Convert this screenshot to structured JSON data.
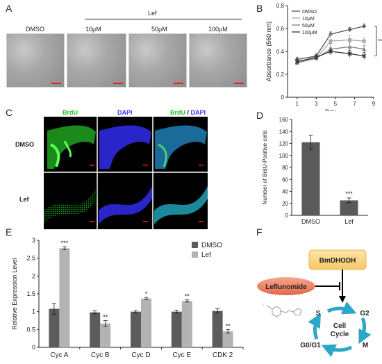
{
  "panel_labels": {
    "a": "A",
    "b": "B",
    "c": "C",
    "d": "D",
    "e": "E",
    "f": "F"
  },
  "panelA": {
    "treatment_label": "Lef",
    "conditions": [
      "DMSO",
      "10μM",
      "50μM",
      "100μM"
    ],
    "scalebar_color": "#e02020"
  },
  "panelC": {
    "columns": [
      "BrdU",
      "DAPI"
    ],
    "merge_label": {
      "brdu": "BrdU",
      "slash": " / ",
      "dapi": "DAPI"
    },
    "rows": [
      "DMSO",
      "Lef"
    ],
    "colors": {
      "brdu": "#22c022",
      "dapi": "#3a35ff"
    }
  },
  "chart_data": [
    {
      "id": "B",
      "type": "line",
      "xlabel": "Day",
      "ylabel": "Absorbance (560 nm)",
      "x": [
        1,
        3,
        5,
        7,
        9
      ],
      "xticks": [
        "1",
        "3",
        "5",
        "7",
        "9"
      ],
      "ylim": [
        0,
        0.8
      ],
      "yticks": [
        "0",
        "0.2",
        "0.4",
        "0.6",
        "0.8"
      ],
      "legend_position": "top-left",
      "significance": "**",
      "series": [
        {
          "name": "DMSO",
          "color": "#555555",
          "marker": "diamond",
          "x": [
            1,
            3,
            4.5,
            6.5,
            8
          ],
          "y": [
            0.33,
            0.36,
            0.55,
            0.59,
            0.62
          ],
          "err": [
            0.02,
            0.02,
            0.02,
            0.02,
            0.02
          ]
        },
        {
          "name": "10μM",
          "color": "#aaaaaa",
          "marker": "square",
          "x": [
            1,
            3,
            4.5,
            6.5,
            8
          ],
          "y": [
            0.31,
            0.34,
            0.49,
            0.5,
            0.49
          ],
          "err": [
            0.02,
            0.02,
            0.06,
            0.04,
            0.03
          ]
        },
        {
          "name": "50μM",
          "color": "#808080",
          "marker": "triangle",
          "x": [
            1,
            3,
            4.5,
            6.5,
            8
          ],
          "y": [
            0.3,
            0.34,
            0.42,
            0.44,
            0.42
          ],
          "err": [
            0.02,
            0.02,
            0.05,
            0.04,
            0.03
          ]
        },
        {
          "name": "100μM",
          "color": "#333333",
          "marker": "x",
          "x": [
            1,
            3,
            4.5,
            6.5,
            8
          ],
          "y": [
            0.31,
            0.35,
            0.4,
            0.38,
            0.36
          ],
          "err": [
            0.02,
            0.02,
            0.03,
            0.03,
            0.03
          ]
        }
      ]
    },
    {
      "id": "D",
      "type": "bar",
      "ylabel": "Number of BrdU-Positive cells",
      "categories": [
        "DMSO",
        "Lef"
      ],
      "values": [
        122,
        25
      ],
      "err": [
        12,
        4
      ],
      "ylim": [
        0,
        160
      ],
      "yticks": [
        "0",
        "20",
        "40",
        "60",
        "80",
        "100",
        "120",
        "140",
        "160"
      ],
      "annotations": [
        "",
        "***"
      ],
      "color": "#5a5a5a"
    },
    {
      "id": "E",
      "type": "bar",
      "ylabel": "Relative Expression Level",
      "categories": [
        "Cyc A",
        "Cyc B",
        "Cyc D",
        "Cyc E",
        "CDK 2"
      ],
      "ylim": [
        0,
        3
      ],
      "yticks": [
        "0",
        "0.5",
        "1",
        "1.5",
        "2",
        "2.5",
        "3"
      ],
      "legend_position": "top-right",
      "series": [
        {
          "name": "DMSO",
          "color": "#5c5c5c",
          "values": [
            1.08,
            0.98,
            1.0,
            1.0,
            1.02
          ],
          "err": [
            0.15,
            0.04,
            0.03,
            0.04,
            0.06
          ],
          "annotations": [
            "",
            "",
            "",
            "",
            ""
          ]
        },
        {
          "name": "Lef",
          "color": "#b3b3b3",
          "values": [
            2.78,
            0.67,
            1.37,
            1.3,
            0.45
          ],
          "err": [
            0.04,
            0.08,
            0.03,
            0.03,
            0.05
          ],
          "annotations": [
            "***",
            "**",
            "*",
            "**",
            "**"
          ]
        }
      ]
    }
  ],
  "panelF": {
    "enzyme": "BmDHODH",
    "drug": "Leflunomide",
    "cycle_center": "Cell\nCycle",
    "cycle_center_line1": "Cell",
    "cycle_center_line2": "Cycle",
    "phases": {
      "s": "S",
      "g2": "G2",
      "m": "M",
      "g0g1": "G0/G1"
    },
    "colors": {
      "enzyme_box": "#fbd98a",
      "drug_box": "#f28a6e",
      "cycle_arrow": "#2aa7c9"
    }
  }
}
